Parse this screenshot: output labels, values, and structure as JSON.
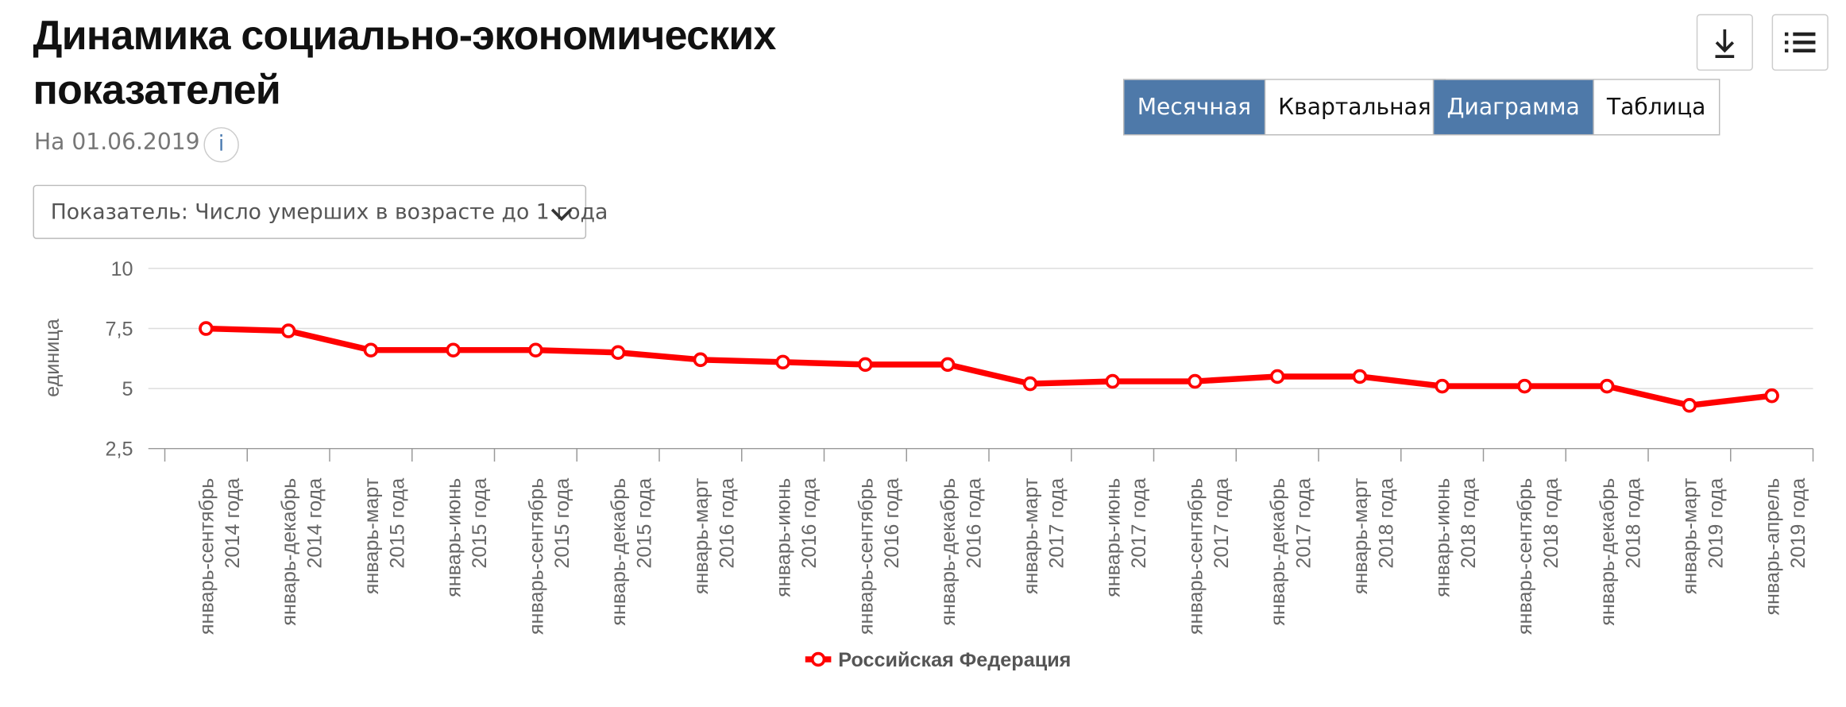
{
  "header": {
    "title": "Динамика социально-экономических показателей",
    "date": "На 01.06.2019",
    "info": "i"
  },
  "selector": {
    "label": "Показатель: Число умерших в возрасте до 1 года"
  },
  "toggles": {
    "period": [
      "Месячная",
      "Квартальная"
    ],
    "period_active": 0,
    "view": [
      "Диаграмма",
      "Таблица"
    ],
    "view_active": 0
  },
  "chart_data": {
    "type": "line",
    "y_label": "единица",
    "categories": [
      [
        "январь-сентябрь",
        "2014 года"
      ],
      [
        "январь-декабрь",
        "2014 года"
      ],
      [
        "январь-март",
        "2015 года"
      ],
      [
        "январь-июнь",
        "2015 года"
      ],
      [
        "январь-сентябрь",
        "2015 года"
      ],
      [
        "январь-декабрь",
        "2015 года"
      ],
      [
        "январь-март",
        "2016 года"
      ],
      [
        "январь-июнь",
        "2016 года"
      ],
      [
        "январь-сентябрь",
        "2016 года"
      ],
      [
        "январь-декабрь",
        "2016 года"
      ],
      [
        "январь-март",
        "2017 года"
      ],
      [
        "январь-июнь",
        "2017 года"
      ],
      [
        "январь-сентябрь",
        "2017 года"
      ],
      [
        "январь-декабрь",
        "2017 года"
      ],
      [
        "январь-март",
        "2018 года"
      ],
      [
        "январь-июнь",
        "2018 года"
      ],
      [
        "январь-сентябрь",
        "2018 года"
      ],
      [
        "январь-декабрь",
        "2018 года"
      ],
      [
        "январь-март",
        "2019 года"
      ],
      [
        "январь-апрель",
        "2019 года"
      ]
    ],
    "series": [
      {
        "name": "Российская Федерация",
        "color": "#ff0000",
        "values": [
          7.5,
          7.4,
          6.6,
          6.6,
          6.6,
          6.5,
          6.2,
          6.1,
          6.0,
          6.0,
          5.2,
          5.3,
          5.3,
          5.5,
          5.5,
          5.1,
          5.1,
          5.1,
          4.3,
          4.7
        ]
      }
    ],
    "ylim": [
      2.5,
      10
    ],
    "yticks": [
      {
        "value": 2.5,
        "label": "2,5"
      },
      5,
      {
        "value": 7.5,
        "label": "7,5"
      },
      10
    ],
    "grid": true,
    "legend": "bottom"
  }
}
